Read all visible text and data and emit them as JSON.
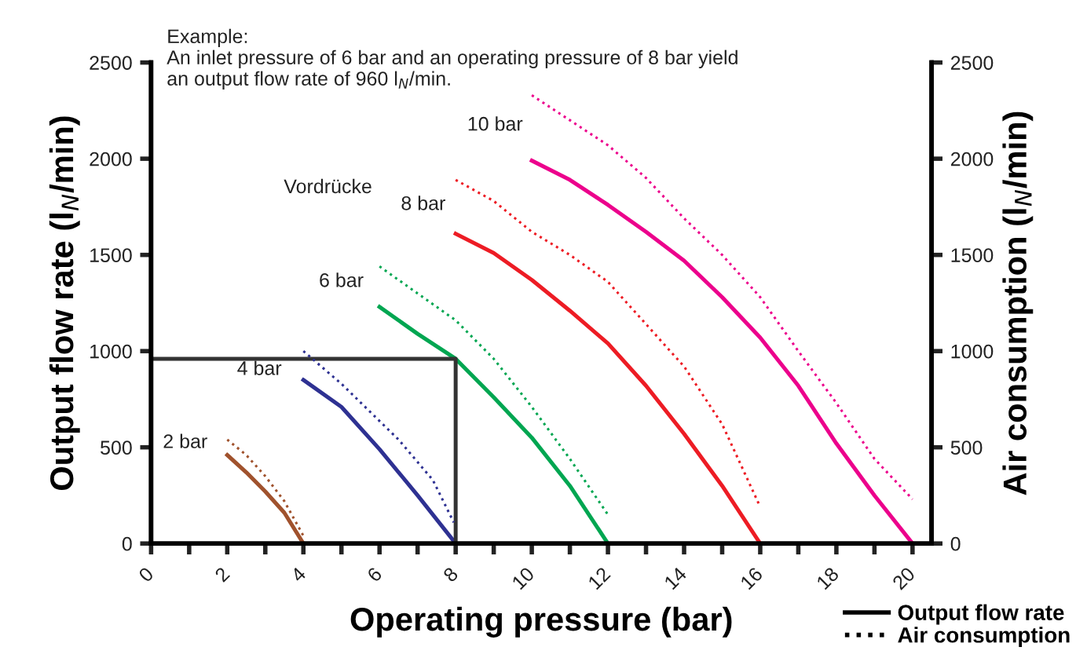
{
  "chart_data": {
    "type": "line",
    "xlabel": "Operating pressure (bar)",
    "ylabel": "Output flow rate (l$_{N}$/min)",
    "y2label": "Air consumption (l$_{N}$/min)",
    "xlim": [
      0,
      20.5
    ],
    "xticks": [
      0,
      {
        "value": 1,
        "label": null
      },
      2,
      {
        "value": 3,
        "label": null
      },
      4,
      {
        "value": 5,
        "label": null
      },
      6,
      {
        "value": 7,
        "label": null
      },
      8,
      {
        "value": 9,
        "label": null
      },
      10,
      {
        "value": 11,
        "label": null
      },
      12,
      {
        "value": 13,
        "label": null
      },
      14,
      {
        "value": 15,
        "label": null
      },
      16,
      {
        "value": 17,
        "label": null
      },
      18,
      {
        "value": 19,
        "label": null
      },
      20
    ],
    "ylim": [
      0,
      2500
    ],
    "yticks": [
      0,
      500,
      1000,
      1500,
      2000,
      2500
    ],
    "y2lim": [
      0,
      2500
    ],
    "y2ticks": [
      0,
      500,
      1000,
      1500,
      2000,
      2500
    ],
    "grid": false,
    "legend": "bottom right",
    "marker": "none",
    "series": [
      {
        "color": "#a0522d",
        "line_style": "solid",
        "x": [
          2,
          2.5,
          3,
          3.5,
          4
        ],
        "values": [
          460,
          370,
          270,
          160,
          0
        ]
      },
      {
        "color": "#a0522d",
        "line_style": "dotted",
        "axis": "y2",
        "x": [
          2,
          2.5,
          3,
          3.5,
          4
        ],
        "values": [
          540,
          460,
          350,
          220,
          40
        ]
      },
      {
        "color": "#2e3192",
        "line_style": "solid",
        "x": [
          4,
          5,
          6,
          7,
          8
        ],
        "values": [
          850,
          710,
          490,
          250,
          0
        ]
      },
      {
        "color": "#2e3192",
        "line_style": "dotted",
        "axis": "y2",
        "x": [
          4,
          5,
          6.5,
          7.4,
          7.95
        ],
        "values": [
          1000,
          830,
          540,
          330,
          110
        ]
      },
      {
        "color": "#00a651",
        "line_style": "solid",
        "x": [
          6,
          7,
          8,
          9,
          10,
          11,
          12
        ],
        "values": [
          1230,
          1090,
          960,
          760,
          550,
          300,
          0
        ]
      },
      {
        "color": "#00a651",
        "line_style": "dotted",
        "axis": "y2",
        "x": [
          6,
          7,
          8,
          9,
          10,
          11,
          12
        ],
        "values": [
          1440,
          1300,
          1160,
          960,
          710,
          440,
          150
        ]
      },
      {
        "color": "#ed1c24",
        "line_style": "solid",
        "x": [
          8,
          9,
          10,
          11,
          12,
          13,
          14,
          15,
          16
        ],
        "values": [
          1610,
          1510,
          1370,
          1210,
          1040,
          820,
          570,
          300,
          0
        ]
      },
      {
        "color": "#ed1c24",
        "line_style": "dotted",
        "axis": "y2",
        "x": [
          8,
          9,
          10,
          11,
          12,
          13,
          14,
          15,
          16
        ],
        "values": [
          1890,
          1780,
          1620,
          1500,
          1360,
          1140,
          920,
          620,
          190
        ]
      },
      {
        "color": "#ec008c",
        "line_style": "solid",
        "x": [
          10,
          11,
          12,
          13,
          14,
          15,
          16,
          17,
          18,
          19,
          20
        ],
        "values": [
          1990,
          1890,
          1760,
          1620,
          1470,
          1280,
          1070,
          820,
          520,
          250,
          0
        ]
      },
      {
        "color": "#ec008c",
        "line_style": "dotted",
        "axis": "y2",
        "x": [
          10,
          11,
          12,
          13,
          14,
          15,
          16,
          17,
          18,
          19,
          20
        ],
        "values": [
          2330,
          2200,
          2070,
          1900,
          1690,
          1500,
          1280,
          1000,
          730,
          440,
          230
        ]
      },
      {
        "name": "Output flow rate",
        "color": "#000000",
        "line_style": "solid"
      },
      {
        "name": "Air consumption",
        "color": "#000000",
        "line_style": "dotted",
        "axis": "y2"
      },
      {
        "color": "#333333",
        "line_style": "solid",
        "x": [
          0,
          8,
          8
        ],
        "values": [
          960,
          960,
          0
        ]
      }
    ],
    "annotations": [
      "Example:\nAn inlet pressure of 6 bar and an operating pressure of 8 bar yield\nan output flow rate of 960 l$_{N}$/min.",
      "2 bar",
      "4 bar",
      "6 bar",
      "8 bar",
      "10 bar",
      "Vordrücke"
    ]
  }
}
